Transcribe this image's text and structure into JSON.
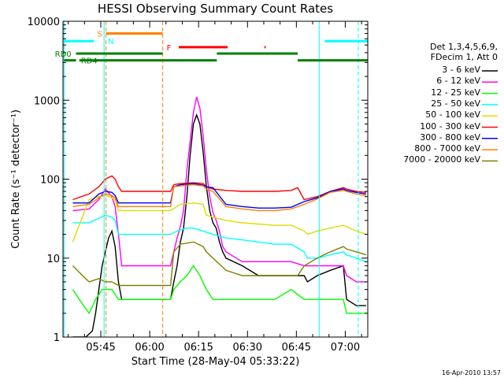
{
  "chart_data": {
    "type": "line",
    "title": "HESSI Observing Summary Count Rates",
    "xlabel": "Start Time (28-May-04 05:33:22)",
    "ylabel": "Count Rate (s⁻¹ detector⁻¹)",
    "xlim_minutes": [
      0,
      93.5
    ],
    "x_ticks": [
      {
        "t": 11.6,
        "label": "05:45"
      },
      {
        "t": 26.6,
        "label": "06:00"
      },
      {
        "t": 41.6,
        "label": "06:15"
      },
      {
        "t": 56.6,
        "label": "06:30"
      },
      {
        "t": 71.6,
        "label": "06:45"
      },
      {
        "t": 86.6,
        "label": "07:00"
      }
    ],
    "yscale": "log",
    "ylim": [
      1,
      10000
    ],
    "y_ticks": [
      {
        "v": 1,
        "label": "1"
      },
      {
        "v": 10,
        "label": "10"
      },
      {
        "v": 100,
        "label": "100"
      },
      {
        "v": 1000,
        "label": "1000"
      },
      {
        "v": 10000,
        "label": "10000"
      }
    ],
    "legend_title": [
      "Det 1,3,4,5,6,9,",
      "FDecim 1, Att 0"
    ],
    "legend_placement": "right",
    "series": [
      {
        "name": "3 - 6 keV",
        "color": "#000000",
        "points": [
          [
            3,
            1
          ],
          [
            7,
            1
          ],
          [
            9,
            1.2
          ],
          [
            10,
            2
          ],
          [
            12,
            8
          ],
          [
            14,
            18
          ],
          [
            15,
            22
          ],
          [
            16,
            14
          ],
          [
            17,
            5
          ],
          [
            18,
            3
          ],
          [
            33,
            3
          ],
          [
            34,
            5
          ],
          [
            35,
            8
          ],
          [
            36,
            16
          ],
          [
            37,
            24
          ],
          [
            38,
            60
          ],
          [
            39,
            200
          ],
          [
            40,
            500
          ],
          [
            41,
            650
          ],
          [
            42,
            500
          ],
          [
            43,
            220
          ],
          [
            44,
            80
          ],
          [
            45,
            40
          ],
          [
            46,
            28
          ],
          [
            47,
            24
          ],
          [
            48,
            16
          ],
          [
            49,
            12
          ],
          [
            50,
            10
          ],
          [
            55,
            8
          ],
          [
            60,
            6
          ],
          [
            65,
            6
          ],
          [
            70,
            6
          ],
          [
            74,
            6
          ],
          [
            75,
            5
          ],
          [
            78,
            6
          ],
          [
            82,
            7
          ],
          [
            86,
            8
          ],
          [
            87,
            3
          ],
          [
            90,
            2.5
          ],
          [
            93,
            2.5
          ]
        ]
      },
      {
        "name": "6 - 12 keV",
        "color": "#ff00ff",
        "points": [
          [
            3,
            40
          ],
          [
            8,
            42
          ],
          [
            11,
            55
          ],
          [
            13,
            75
          ],
          [
            15,
            60
          ],
          [
            16,
            45
          ],
          [
            17,
            20
          ],
          [
            18,
            8
          ],
          [
            33,
            8
          ],
          [
            34,
            12
          ],
          [
            35,
            18
          ],
          [
            36,
            25
          ],
          [
            37,
            40
          ],
          [
            38,
            130
          ],
          [
            39,
            300
          ],
          [
            40,
            700
          ],
          [
            41,
            1100
          ],
          [
            42,
            800
          ],
          [
            43,
            350
          ],
          [
            44,
            130
          ],
          [
            45,
            60
          ],
          [
            46,
            38
          ],
          [
            47,
            30
          ],
          [
            48,
            22
          ],
          [
            49,
            14
          ],
          [
            50,
            12
          ],
          [
            55,
            9
          ],
          [
            60,
            9
          ],
          [
            65,
            9
          ],
          [
            70,
            9
          ],
          [
            74,
            8
          ],
          [
            78,
            8
          ],
          [
            82,
            8
          ],
          [
            86,
            8
          ],
          [
            87,
            6
          ],
          [
            90,
            5
          ],
          [
            93,
            5
          ]
        ]
      },
      {
        "name": "12 - 25 keV",
        "color": "#00ff00",
        "points": [
          [
            3,
            4
          ],
          [
            5,
            3
          ],
          [
            8,
            2
          ],
          [
            10,
            3
          ],
          [
            12,
            4
          ],
          [
            15,
            4
          ],
          [
            17,
            3
          ],
          [
            33,
            3
          ],
          [
            34,
            4
          ],
          [
            36,
            5
          ],
          [
            38,
            6
          ],
          [
            40,
            8
          ],
          [
            42,
            6
          ],
          [
            44,
            4
          ],
          [
            46,
            3
          ],
          [
            50,
            3
          ],
          [
            55,
            3
          ],
          [
            60,
            3
          ],
          [
            65,
            3
          ],
          [
            70,
            4
          ],
          [
            74,
            3
          ],
          [
            78,
            3
          ],
          [
            82,
            3
          ],
          [
            86,
            3
          ],
          [
            87,
            2
          ],
          [
            90,
            2
          ],
          [
            93,
            2
          ]
        ]
      },
      {
        "name": "25 - 50 keV",
        "color": "#00ffff",
        "points": [
          [
            3,
            28
          ],
          [
            8,
            28
          ],
          [
            11,
            32
          ],
          [
            13,
            35
          ],
          [
            15,
            33
          ],
          [
            16,
            30
          ],
          [
            17,
            20
          ],
          [
            33,
            20
          ],
          [
            35,
            22
          ],
          [
            38,
            24
          ],
          [
            40,
            24
          ],
          [
            43,
            22
          ],
          [
            46,
            20
          ],
          [
            50,
            18
          ],
          [
            55,
            17
          ],
          [
            60,
            16
          ],
          [
            65,
            15
          ],
          [
            70,
            15
          ],
          [
            74,
            12
          ],
          [
            75,
            10
          ],
          [
            78,
            10
          ],
          [
            82,
            11
          ],
          [
            86,
            12
          ],
          [
            87,
            11
          ],
          [
            90,
            10
          ],
          [
            93,
            9
          ]
        ]
      },
      {
        "name": "50 - 100 keV",
        "color": "#dddd00",
        "points": [
          [
            3,
            16
          ],
          [
            8,
            55
          ],
          [
            11,
            60
          ],
          [
            13,
            62
          ],
          [
            15,
            58
          ],
          [
            16,
            55
          ],
          [
            17,
            40
          ],
          [
            33,
            40
          ],
          [
            36,
            48
          ],
          [
            40,
            50
          ],
          [
            43,
            48
          ],
          [
            44,
            35
          ],
          [
            46,
            33
          ],
          [
            50,
            30
          ],
          [
            55,
            28
          ],
          [
            60,
            27
          ],
          [
            65,
            26
          ],
          [
            70,
            26
          ],
          [
            74,
            22
          ],
          [
            75,
            20
          ],
          [
            78,
            22
          ],
          [
            82,
            24
          ],
          [
            86,
            26
          ],
          [
            87,
            25
          ],
          [
            90,
            22
          ],
          [
            93,
            20
          ]
        ]
      },
      {
        "name": "100 - 300 keV",
        "color": "#ff0000",
        "points": [
          [
            3,
            55
          ],
          [
            8,
            65
          ],
          [
            11,
            80
          ],
          [
            13,
            100
          ],
          [
            15,
            110
          ],
          [
            16,
            100
          ],
          [
            17,
            80
          ],
          [
            18,
            70
          ],
          [
            33,
            70
          ],
          [
            34,
            85
          ],
          [
            36,
            88
          ],
          [
            40,
            90
          ],
          [
            43,
            88
          ],
          [
            44,
            80
          ],
          [
            46,
            75
          ],
          [
            50,
            72
          ],
          [
            55,
            70
          ],
          [
            60,
            70
          ],
          [
            65,
            70
          ],
          [
            70,
            72
          ],
          [
            72,
            78
          ],
          [
            74,
            55
          ],
          [
            78,
            60
          ],
          [
            82,
            70
          ],
          [
            86,
            78
          ],
          [
            87,
            75
          ],
          [
            90,
            70
          ],
          [
            93,
            68
          ]
        ]
      },
      {
        "name": "300 - 800 keV",
        "color": "#0000ff",
        "points": [
          [
            3,
            50
          ],
          [
            8,
            50
          ],
          [
            11,
            65
          ],
          [
            13,
            70
          ],
          [
            15,
            68
          ],
          [
            16,
            62
          ],
          [
            17,
            50
          ],
          [
            33,
            50
          ],
          [
            34,
            80
          ],
          [
            36,
            85
          ],
          [
            40,
            88
          ],
          [
            43,
            84
          ],
          [
            44,
            80
          ],
          [
            46,
            78
          ],
          [
            50,
            48
          ],
          [
            55,
            45
          ],
          [
            60,
            43
          ],
          [
            65,
            43
          ],
          [
            70,
            44
          ],
          [
            72,
            48
          ],
          [
            74,
            52
          ],
          [
            78,
            58
          ],
          [
            82,
            70
          ],
          [
            86,
            75
          ],
          [
            87,
            72
          ],
          [
            90,
            68
          ],
          [
            93,
            65
          ]
        ]
      },
      {
        "name": "800 - 7000 keV",
        "color": "#ff8000",
        "points": [
          [
            3,
            45
          ],
          [
            8,
            48
          ],
          [
            11,
            58
          ],
          [
            13,
            65
          ],
          [
            15,
            62
          ],
          [
            16,
            58
          ],
          [
            17,
            45
          ],
          [
            33,
            45
          ],
          [
            34,
            80
          ],
          [
            36,
            82
          ],
          [
            40,
            85
          ],
          [
            43,
            82
          ],
          [
            44,
            75
          ],
          [
            46,
            70
          ],
          [
            50,
            45
          ],
          [
            55,
            42
          ],
          [
            60,
            40
          ],
          [
            65,
            40
          ],
          [
            70,
            42
          ],
          [
            72,
            45
          ],
          [
            74,
            48
          ],
          [
            78,
            56
          ],
          [
            82,
            68
          ],
          [
            86,
            72
          ],
          [
            87,
            70
          ],
          [
            90,
            65
          ],
          [
            93,
            62
          ]
        ]
      },
      {
        "name": "7000 - 20000 keV",
        "color": "#808000",
        "points": [
          [
            3,
            8
          ],
          [
            6,
            6
          ],
          [
            8,
            5
          ],
          [
            11,
            5.5
          ],
          [
            13,
            5
          ],
          [
            15,
            5
          ],
          [
            17,
            4.5
          ],
          [
            33,
            4.5
          ],
          [
            34,
            12
          ],
          [
            36,
            15
          ],
          [
            40,
            16
          ],
          [
            43,
            14
          ],
          [
            44,
            12
          ],
          [
            46,
            10
          ],
          [
            50,
            7
          ],
          [
            55,
            6
          ],
          [
            60,
            6
          ],
          [
            65,
            6
          ],
          [
            70,
            6
          ],
          [
            72,
            6
          ],
          [
            74,
            8
          ],
          [
            78,
            10
          ],
          [
            82,
            12
          ],
          [
            86,
            14
          ],
          [
            87,
            13
          ],
          [
            90,
            12
          ],
          [
            93,
            11
          ]
        ]
      }
    ],
    "vlines": [
      {
        "t": 0.3,
        "color": "#00ffff",
        "dashed": false
      },
      {
        "t": 12.6,
        "color": "#00ffff",
        "dashed": false
      },
      {
        "t": 13.2,
        "color": "#ff8000",
        "dashed": true
      },
      {
        "t": 30.6,
        "color": "#ff8000",
        "dashed": true
      },
      {
        "t": 78.6,
        "color": "#00ffff",
        "dashed": false
      },
      {
        "t": 90.6,
        "color": "#00ffff",
        "dashed": true
      }
    ],
    "flag_bars": [
      {
        "label": "S",
        "color": "#ff8000",
        "y": 7000,
        "segments": [
          [
            13.2,
            30.6
          ]
        ]
      },
      {
        "label": "N",
        "color": "#00ffff",
        "y": 5600,
        "segments": [
          [
            0.3,
            9.5
          ],
          [
            80.3,
            93.5
          ]
        ]
      },
      {
        "label": "F",
        "color": "#ff0000",
        "y": 4700,
        "segments": [
          [
            35.5,
            50.5
          ],
          [
            61.8,
            62.2
          ]
        ]
      },
      {
        "label": "RD0",
        "color": "#008000",
        "y": 3900,
        "segments": [
          [
            4,
            30.6
          ],
          [
            47.2,
            72
          ]
        ]
      },
      {
        "label": "RD4",
        "color": "#008000",
        "y": 3200,
        "segments": [
          [
            0.3,
            4
          ],
          [
            5,
            30.6
          ],
          [
            30.6,
            47.2
          ],
          [
            72,
            93.5
          ]
        ]
      }
    ],
    "flag_label_positions": [
      {
        "label": "S",
        "t": 10.5,
        "y": 7000
      },
      {
        "label": "N",
        "t": 13.8,
        "y": 5600
      },
      {
        "label": "F",
        "t": 31.8,
        "y": 4700
      },
      {
        "label": "RD0",
        "t": -2.5,
        "y": 3900
      },
      {
        "label": "RD4",
        "t": 5.5,
        "y": 3200
      }
    ]
  },
  "footer": {
    "timestamp": "16-Apr-2010 13:57"
  }
}
